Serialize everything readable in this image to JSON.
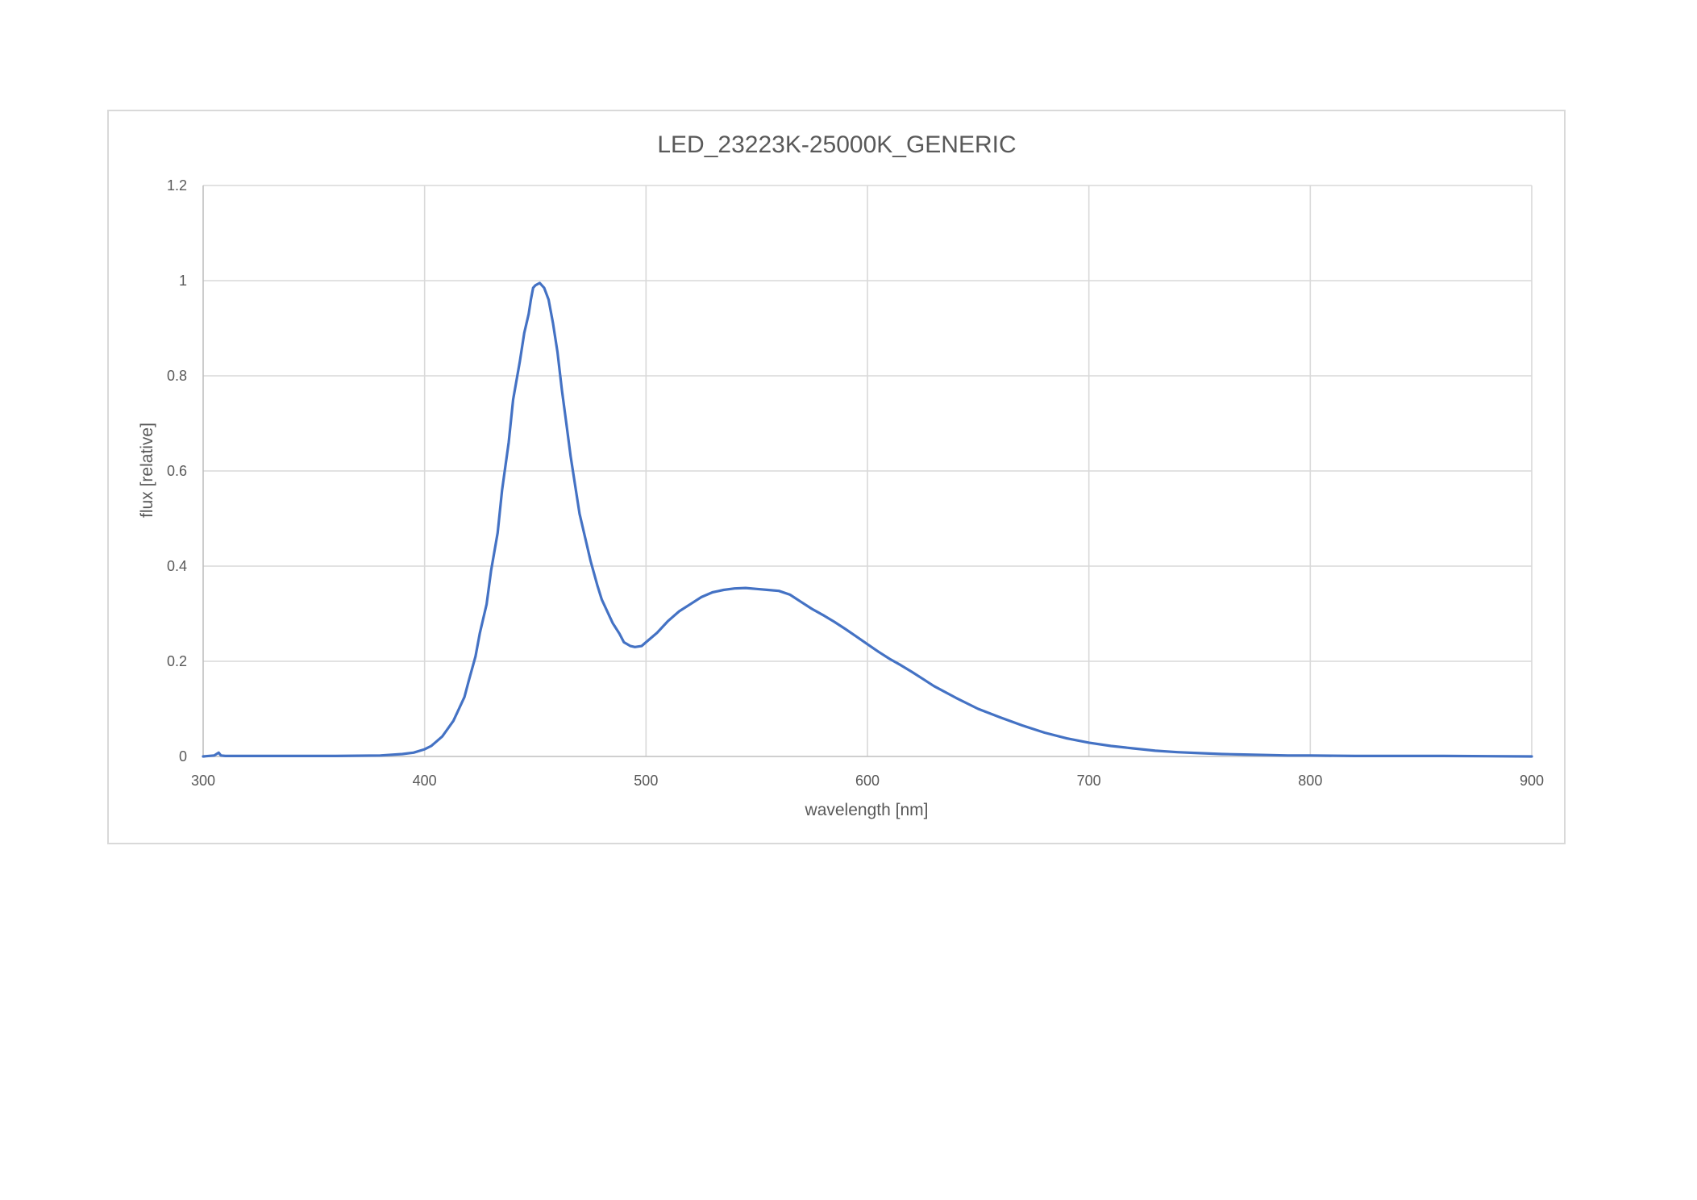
{
  "chart_data": {
    "type": "line",
    "title": "LED_23223K-25000K_GENERIC",
    "xlabel": "wavelength [nm]",
    "ylabel": "flux [relative]",
    "xlim": [
      300,
      900
    ],
    "ylim": [
      0,
      1.2
    ],
    "x_ticks": [
      300,
      400,
      500,
      600,
      700,
      800,
      900
    ],
    "x_tick_labels": [
      "300",
      "400",
      "500",
      "600",
      "700",
      "800",
      "900"
    ],
    "y_ticks": [
      0,
      0.2,
      0.4,
      0.6,
      0.8,
      1,
      1.2
    ],
    "y_tick_labels": [
      "0",
      "0.2",
      "0.4",
      "0.6",
      "0.8",
      "1",
      "1.2"
    ],
    "grid": true,
    "legend": "none",
    "series": [
      {
        "color": "#4472c4",
        "x": [
          300,
          305,
          307,
          308,
          310,
          320,
          340,
          360,
          380,
          390,
          395,
          400,
          403,
          405,
          408,
          410,
          413,
          415,
          418,
          420,
          423,
          425,
          428,
          430,
          433,
          435,
          438,
          440,
          443,
          445,
          447,
          448,
          449,
          450,
          452,
          454,
          456,
          458,
          460,
          462,
          464,
          466,
          468,
          470,
          473,
          475,
          478,
          480,
          483,
          485,
          488,
          490,
          493,
          495,
          498,
          500,
          505,
          510,
          515,
          520,
          525,
          530,
          535,
          540,
          545,
          550,
          555,
          560,
          565,
          570,
          575,
          580,
          585,
          590,
          595,
          600,
          605,
          610,
          615,
          620,
          625,
          630,
          640,
          650,
          660,
          670,
          680,
          690,
          700,
          710,
          720,
          730,
          740,
          750,
          760,
          770,
          780,
          790,
          800,
          820,
          840,
          860,
          880,
          900
        ],
        "y": [
          0,
          0.002,
          0.008,
          0.002,
          0.001,
          0.001,
          0.001,
          0.001,
          0.002,
          0.005,
          0.008,
          0.015,
          0.022,
          0.03,
          0.042,
          0.055,
          0.075,
          0.095,
          0.125,
          0.16,
          0.21,
          0.26,
          0.32,
          0.39,
          0.47,
          0.56,
          0.66,
          0.75,
          0.83,
          0.89,
          0.93,
          0.96,
          0.985,
          0.99,
          0.995,
          0.985,
          0.96,
          0.91,
          0.85,
          0.77,
          0.7,
          0.63,
          0.57,
          0.51,
          0.45,
          0.41,
          0.36,
          0.33,
          0.3,
          0.28,
          0.258,
          0.24,
          0.232,
          0.23,
          0.232,
          0.24,
          0.26,
          0.285,
          0.305,
          0.32,
          0.335,
          0.345,
          0.35,
          0.353,
          0.354,
          0.352,
          0.35,
          0.348,
          0.34,
          0.325,
          0.31,
          0.297,
          0.283,
          0.268,
          0.252,
          0.236,
          0.22,
          0.205,
          0.192,
          0.178,
          0.163,
          0.148,
          0.123,
          0.1,
          0.082,
          0.065,
          0.05,
          0.038,
          0.029,
          0.022,
          0.017,
          0.012,
          0.009,
          0.007,
          0.005,
          0.004,
          0.003,
          0.002,
          0.002,
          0.001,
          0.001,
          0.001,
          0.0005,
          0
        ]
      }
    ]
  }
}
